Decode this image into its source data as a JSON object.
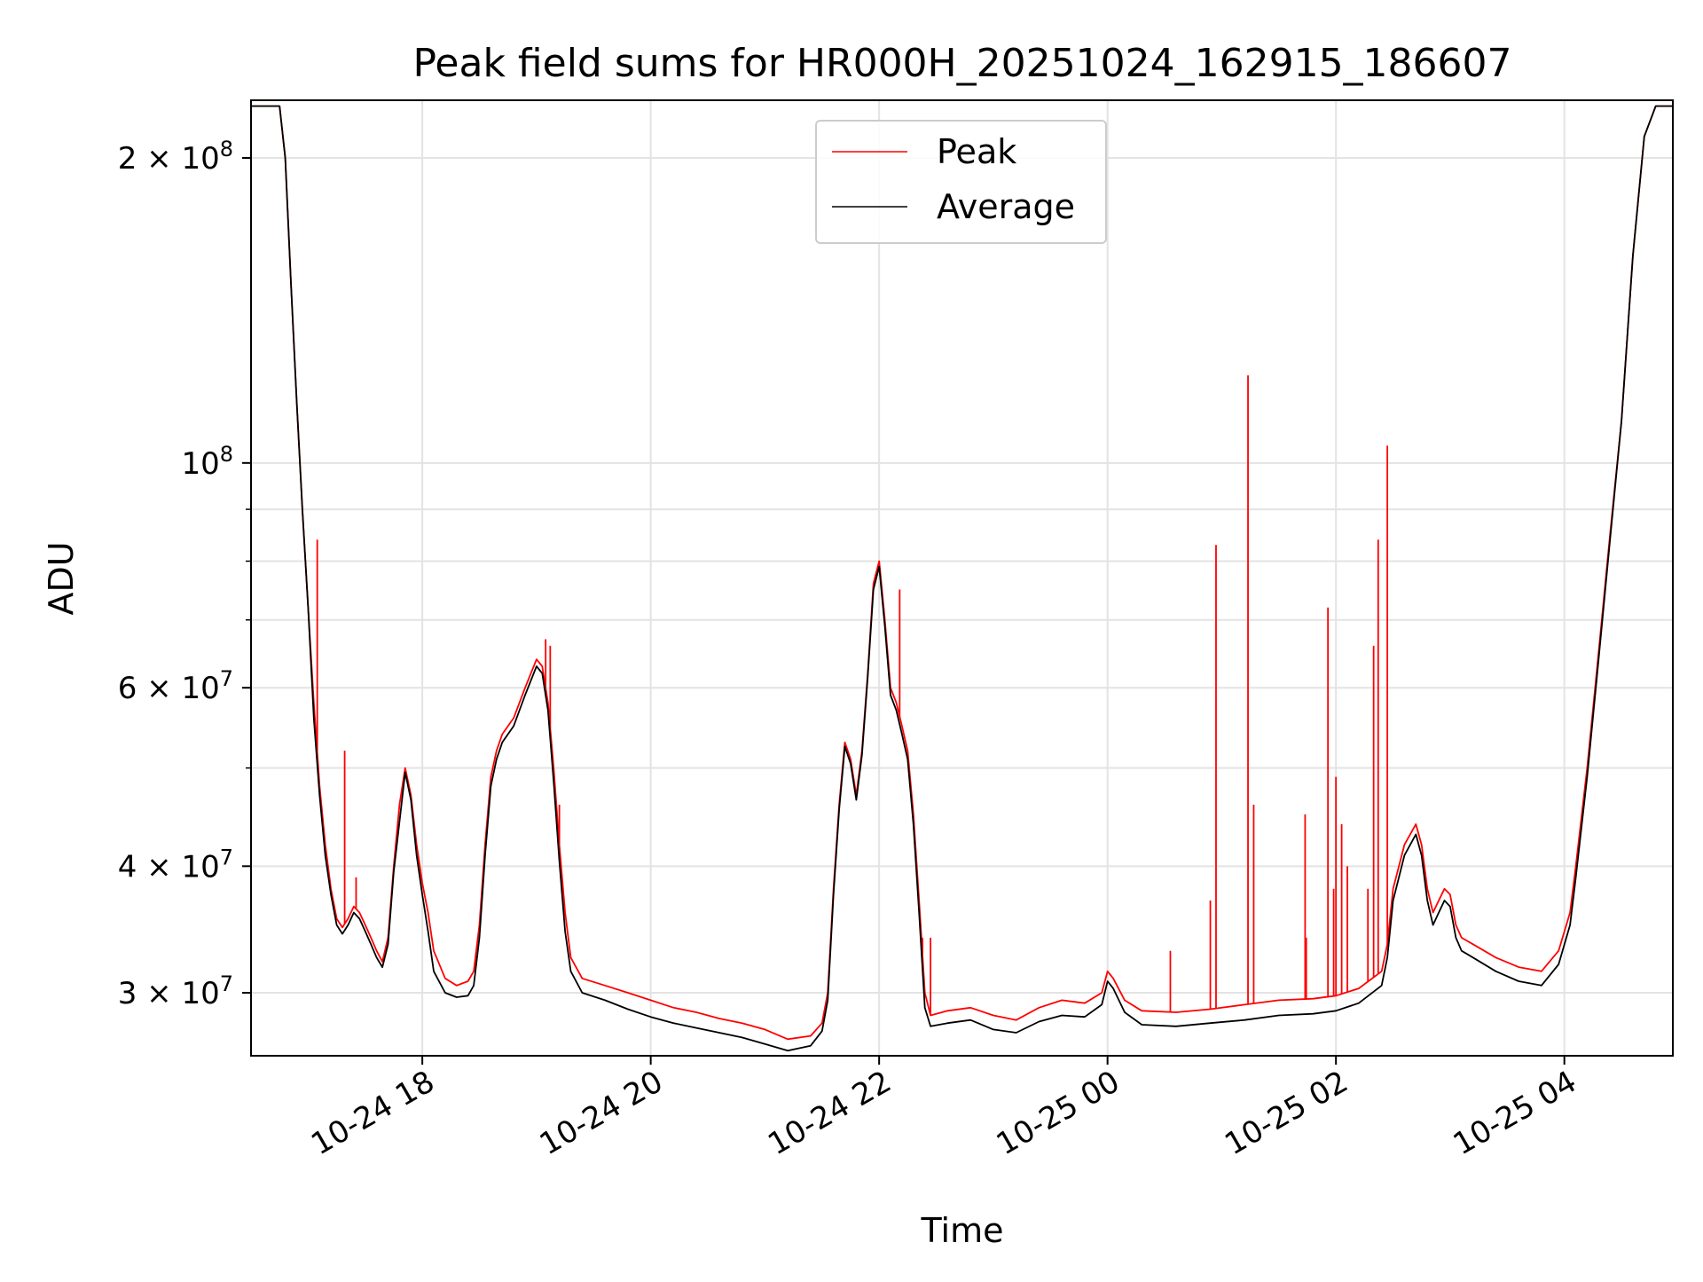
{
  "chart_data": {
    "type": "line",
    "title": "Peak field sums for HR000H_20251024_162915_186607",
    "xlabel": "Time",
    "ylabel": "ADU",
    "yscale": "log",
    "xlim": [
      16.5,
      28.95
    ],
    "ylim": [
      26000000,
      228000000
    ],
    "grid": true,
    "legend_position": "top-center",
    "x_ticks": [
      {
        "value": 18,
        "label": "10-24 18"
      },
      {
        "value": 20,
        "label": "10-24 20"
      },
      {
        "value": 22,
        "label": "10-24 22"
      },
      {
        "value": 24,
        "label": "10-25 00"
      },
      {
        "value": 26,
        "label": "10-25 02"
      },
      {
        "value": 28,
        "label": "10-25 04"
      }
    ],
    "y_ticks": [
      {
        "value": 30000000,
        "base": "3 × 10",
        "exp": "7"
      },
      {
        "value": 40000000,
        "base": "4 × 10",
        "exp": "7"
      },
      {
        "value": 60000000,
        "base": "6 × 10",
        "exp": "7"
      },
      {
        "value": 100000000,
        "base": "10",
        "exp": "8"
      },
      {
        "value": 200000000,
        "base": "2 × 10",
        "exp": "8"
      }
    ],
    "y_minor_ticks": [
      50000000,
      70000000,
      80000000,
      90000000
    ],
    "series": [
      {
        "name": "Peak",
        "color": "#ff0000",
        "points": [
          [
            16.5,
            225000000
          ],
          [
            16.75,
            225000000
          ],
          [
            16.8,
            200000000
          ],
          [
            16.85,
            150000000
          ],
          [
            16.9,
            115000000
          ],
          [
            16.95,
            90000000
          ],
          [
            17.0,
            72000000
          ],
          [
            17.05,
            58000000
          ],
          [
            17.1,
            48000000
          ],
          [
            17.15,
            42000000
          ],
          [
            17.2,
            38000000
          ],
          [
            17.25,
            35500000
          ],
          [
            17.3,
            34800000
          ],
          [
            17.35,
            35500000
          ],
          [
            17.4,
            36500000
          ],
          [
            17.45,
            36000000
          ],
          [
            17.5,
            35000000
          ],
          [
            17.55,
            34000000
          ],
          [
            17.6,
            33000000
          ],
          [
            17.65,
            32200000
          ],
          [
            17.7,
            34000000
          ],
          [
            17.75,
            40000000
          ],
          [
            17.8,
            46000000
          ],
          [
            17.85,
            50000000
          ],
          [
            17.9,
            47000000
          ],
          [
            17.95,
            42000000
          ],
          [
            18.0,
            38500000
          ],
          [
            18.05,
            36000000
          ],
          [
            18.1,
            33000000
          ],
          [
            18.2,
            31000000
          ],
          [
            18.3,
            30500000
          ],
          [
            18.4,
            30800000
          ],
          [
            18.45,
            31500000
          ],
          [
            18.5,
            35000000
          ],
          [
            18.55,
            42000000
          ],
          [
            18.6,
            49000000
          ],
          [
            18.65,
            52000000
          ],
          [
            18.7,
            54000000
          ],
          [
            18.8,
            56000000
          ],
          [
            18.9,
            60000000
          ],
          [
            19.0,
            64000000
          ],
          [
            19.05,
            63000000
          ],
          [
            19.1,
            58000000
          ],
          [
            19.15,
            50000000
          ],
          [
            19.2,
            42000000
          ],
          [
            19.25,
            36000000
          ],
          [
            19.3,
            32500000
          ],
          [
            19.4,
            31000000
          ],
          [
            19.6,
            30500000
          ],
          [
            19.8,
            30000000
          ],
          [
            20.0,
            29500000
          ],
          [
            20.2,
            29000000
          ],
          [
            20.4,
            28700000
          ],
          [
            20.6,
            28300000
          ],
          [
            20.8,
            28000000
          ],
          [
            21.0,
            27600000
          ],
          [
            21.2,
            27000000
          ],
          [
            21.4,
            27200000
          ],
          [
            21.5,
            28000000
          ],
          [
            21.55,
            30000000
          ],
          [
            21.6,
            38000000
          ],
          [
            21.65,
            46000000
          ],
          [
            21.7,
            53000000
          ],
          [
            21.75,
            51000000
          ],
          [
            21.8,
            47000000
          ],
          [
            21.85,
            52000000
          ],
          [
            21.9,
            62000000
          ],
          [
            21.95,
            76000000
          ],
          [
            22.0,
            80000000
          ],
          [
            22.05,
            70000000
          ],
          [
            22.1,
            60000000
          ],
          [
            22.15,
            58000000
          ],
          [
            22.2,
            55000000
          ],
          [
            22.25,
            52000000
          ],
          [
            22.3,
            45000000
          ],
          [
            22.35,
            37000000
          ],
          [
            22.4,
            30000000
          ],
          [
            22.45,
            28500000
          ],
          [
            22.6,
            28800000
          ],
          [
            22.8,
            29000000
          ],
          [
            23.0,
            28500000
          ],
          [
            23.2,
            28200000
          ],
          [
            23.4,
            29000000
          ],
          [
            23.6,
            29500000
          ],
          [
            23.8,
            29300000
          ],
          [
            23.95,
            30000000
          ],
          [
            24.0,
            31500000
          ],
          [
            24.05,
            31000000
          ],
          [
            24.15,
            29500000
          ],
          [
            24.3,
            28800000
          ],
          [
            24.6,
            28700000
          ],
          [
            24.9,
            28900000
          ],
          [
            25.2,
            29200000
          ],
          [
            25.5,
            29500000
          ],
          [
            25.8,
            29600000
          ],
          [
            26.0,
            29800000
          ],
          [
            26.2,
            30300000
          ],
          [
            26.4,
            31500000
          ],
          [
            26.45,
            33500000
          ],
          [
            26.5,
            38000000
          ],
          [
            26.6,
            42000000
          ],
          [
            26.7,
            44000000
          ],
          [
            26.75,
            42000000
          ],
          [
            26.8,
            38000000
          ],
          [
            26.85,
            36000000
          ],
          [
            26.9,
            37000000
          ],
          [
            26.95,
            38000000
          ],
          [
            27.0,
            37500000
          ],
          [
            27.05,
            35000000
          ],
          [
            27.1,
            34000000
          ],
          [
            27.2,
            33500000
          ],
          [
            27.4,
            32500000
          ],
          [
            27.6,
            31800000
          ],
          [
            27.8,
            31500000
          ],
          [
            27.95,
            33000000
          ],
          [
            28.05,
            36000000
          ],
          [
            28.1,
            40000000
          ],
          [
            28.2,
            50000000
          ],
          [
            28.3,
            65000000
          ],
          [
            28.4,
            85000000
          ],
          [
            28.5,
            110000000
          ],
          [
            28.6,
            160000000
          ],
          [
            28.7,
            210000000
          ],
          [
            28.8,
            225000000
          ],
          [
            28.95,
            225000000
          ]
        ]
      },
      {
        "name": "Average",
        "color": "#000000",
        "points": [
          [
            16.5,
            225000000
          ],
          [
            16.75,
            225000000
          ],
          [
            16.8,
            200000000
          ],
          [
            16.85,
            150000000
          ],
          [
            16.9,
            115000000
          ],
          [
            16.95,
            90000000
          ],
          [
            17.0,
            72000000
          ],
          [
            17.05,
            56000000
          ],
          [
            17.1,
            47000000
          ],
          [
            17.15,
            41000000
          ],
          [
            17.2,
            37500000
          ],
          [
            17.25,
            35000000
          ],
          [
            17.3,
            34300000
          ],
          [
            17.35,
            35000000
          ],
          [
            17.4,
            36000000
          ],
          [
            17.45,
            35500000
          ],
          [
            17.5,
            34500000
          ],
          [
            17.55,
            33500000
          ],
          [
            17.6,
            32500000
          ],
          [
            17.65,
            31800000
          ],
          [
            17.7,
            33500000
          ],
          [
            17.75,
            39500000
          ],
          [
            17.85,
            49500000
          ],
          [
            17.9,
            46500000
          ],
          [
            17.95,
            41000000
          ],
          [
            18.0,
            37500000
          ],
          [
            18.05,
            34500000
          ],
          [
            18.1,
            31500000
          ],
          [
            18.2,
            30000000
          ],
          [
            18.3,
            29700000
          ],
          [
            18.4,
            29800000
          ],
          [
            18.45,
            30500000
          ],
          [
            18.5,
            34000000
          ],
          [
            18.55,
            41000000
          ],
          [
            18.6,
            48000000
          ],
          [
            18.65,
            51000000
          ],
          [
            18.7,
            53000000
          ],
          [
            18.8,
            55000000
          ],
          [
            18.9,
            59000000
          ],
          [
            19.0,
            63000000
          ],
          [
            19.05,
            62000000
          ],
          [
            19.1,
            57000000
          ],
          [
            19.15,
            48500000
          ],
          [
            19.2,
            40500000
          ],
          [
            19.25,
            34500000
          ],
          [
            19.3,
            31500000
          ],
          [
            19.4,
            30000000
          ],
          [
            19.6,
            29500000
          ],
          [
            19.8,
            28900000
          ],
          [
            20.0,
            28400000
          ],
          [
            20.2,
            28000000
          ],
          [
            20.4,
            27700000
          ],
          [
            20.6,
            27400000
          ],
          [
            20.8,
            27100000
          ],
          [
            21.0,
            26700000
          ],
          [
            21.2,
            26300000
          ],
          [
            21.4,
            26600000
          ],
          [
            21.5,
            27500000
          ],
          [
            21.55,
            29500000
          ],
          [
            21.6,
            37500000
          ],
          [
            21.65,
            45500000
          ],
          [
            21.7,
            52500000
          ],
          [
            21.75,
            50500000
          ],
          [
            21.8,
            46500000
          ],
          [
            21.85,
            51500000
          ],
          [
            21.9,
            61500000
          ],
          [
            21.95,
            75000000
          ],
          [
            22.0,
            79000000
          ],
          [
            22.05,
            69000000
          ],
          [
            22.1,
            59000000
          ],
          [
            22.15,
            57000000
          ],
          [
            22.2,
            54000000
          ],
          [
            22.25,
            51000000
          ],
          [
            22.3,
            44000000
          ],
          [
            22.35,
            36000000
          ],
          [
            22.4,
            29000000
          ],
          [
            22.45,
            27800000
          ],
          [
            22.6,
            28000000
          ],
          [
            22.8,
            28200000
          ],
          [
            23.0,
            27600000
          ],
          [
            23.2,
            27400000
          ],
          [
            23.4,
            28100000
          ],
          [
            23.6,
            28500000
          ],
          [
            23.8,
            28400000
          ],
          [
            23.95,
            29200000
          ],
          [
            24.0,
            30800000
          ],
          [
            24.05,
            30300000
          ],
          [
            24.15,
            28700000
          ],
          [
            24.3,
            27900000
          ],
          [
            24.6,
            27800000
          ],
          [
            24.9,
            28000000
          ],
          [
            25.2,
            28200000
          ],
          [
            25.5,
            28500000
          ],
          [
            25.8,
            28600000
          ],
          [
            26.0,
            28800000
          ],
          [
            26.2,
            29300000
          ],
          [
            26.4,
            30500000
          ],
          [
            26.45,
            32500000
          ],
          [
            26.5,
            37000000
          ],
          [
            26.6,
            41000000
          ],
          [
            26.7,
            43000000
          ],
          [
            26.75,
            41000000
          ],
          [
            26.8,
            37000000
          ],
          [
            26.85,
            35000000
          ],
          [
            26.9,
            36000000
          ],
          [
            26.95,
            37000000
          ],
          [
            27.0,
            36500000
          ],
          [
            27.05,
            34000000
          ],
          [
            27.1,
            33000000
          ],
          [
            27.2,
            32500000
          ],
          [
            27.4,
            31500000
          ],
          [
            27.6,
            30800000
          ],
          [
            27.8,
            30500000
          ],
          [
            27.95,
            32000000
          ],
          [
            28.05,
            35000000
          ],
          [
            28.1,
            39000000
          ],
          [
            28.2,
            49000000
          ],
          [
            28.3,
            64000000
          ],
          [
            28.4,
            84000000
          ],
          [
            28.5,
            110000000
          ],
          [
            28.6,
            160000000
          ],
          [
            28.7,
            210000000
          ],
          [
            28.8,
            225000000
          ],
          [
            28.95,
            225000000
          ]
        ]
      }
    ],
    "peak_spikes": [
      [
        17.08,
        84000000
      ],
      [
        17.32,
        52000000
      ],
      [
        17.42,
        39000000
      ],
      [
        18.1,
        33000000
      ],
      [
        19.08,
        67000000
      ],
      [
        19.12,
        66000000
      ],
      [
        19.2,
        46000000
      ],
      [
        22.18,
        75000000
      ],
      [
        22.38,
        34000000
      ],
      [
        22.45,
        34000000
      ],
      [
        24.55,
        33000000
      ],
      [
        24.9,
        37000000
      ],
      [
        24.95,
        83000000
      ],
      [
        25.23,
        122000000
      ],
      [
        25.28,
        46000000
      ],
      [
        25.73,
        45000000
      ],
      [
        25.74,
        34000000
      ],
      [
        25.93,
        72000000
      ],
      [
        25.98,
        38000000
      ],
      [
        26.0,
        49000000
      ],
      [
        26.05,
        44000000
      ],
      [
        26.1,
        40000000
      ],
      [
        26.28,
        38000000
      ],
      [
        26.33,
        66000000
      ],
      [
        26.37,
        84000000
      ],
      [
        26.45,
        104000000
      ]
    ]
  }
}
